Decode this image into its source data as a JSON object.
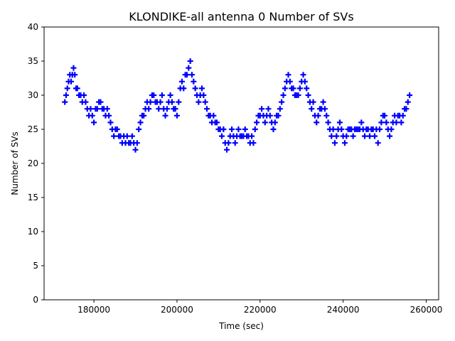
{
  "chart_data": {
    "type": "scatter",
    "title": "KLONDIKE-all antenna 0 Number of SVs",
    "xlabel": "Time (sec)",
    "ylabel": "Number of SVs",
    "xlim": [
      168000,
      263000
    ],
    "ylim": [
      0,
      40
    ],
    "xticks": [
      180000,
      200000,
      220000,
      240000,
      260000
    ],
    "yticks": [
      0,
      5,
      10,
      15,
      20,
      25,
      30,
      35,
      40
    ],
    "marker": "+",
    "color": "#0000ff",
    "series": [
      {
        "name": "antenna 0",
        "points": [
          [
            173000,
            29
          ],
          [
            173300,
            30
          ],
          [
            173600,
            31
          ],
          [
            173900,
            32
          ],
          [
            174200,
            33
          ],
          [
            174500,
            32
          ],
          [
            174800,
            33
          ],
          [
            175100,
            34
          ],
          [
            175400,
            33
          ],
          [
            175700,
            31
          ],
          [
            176000,
            31
          ],
          [
            176400,
            30
          ],
          [
            176800,
            30
          ],
          [
            177200,
            29
          ],
          [
            177600,
            30
          ],
          [
            178000,
            29
          ],
          [
            178400,
            28
          ],
          [
            178800,
            27
          ],
          [
            179200,
            28
          ],
          [
            179600,
            27
          ],
          [
            180000,
            26
          ],
          [
            180400,
            28
          ],
          [
            180800,
            28
          ],
          [
            181200,
            29
          ],
          [
            181600,
            29
          ],
          [
            182000,
            28
          ],
          [
            182400,
            28
          ],
          [
            182800,
            27
          ],
          [
            183200,
            28
          ],
          [
            183600,
            27
          ],
          [
            184000,
            26
          ],
          [
            184400,
            25
          ],
          [
            184800,
            24
          ],
          [
            185200,
            25
          ],
          [
            185600,
            25
          ],
          [
            186000,
            24
          ],
          [
            186400,
            24
          ],
          [
            186800,
            23
          ],
          [
            187200,
            24
          ],
          [
            187600,
            23
          ],
          [
            188000,
            24
          ],
          [
            188400,
            23
          ],
          [
            188800,
            23
          ],
          [
            189200,
            24
          ],
          [
            189600,
            23
          ],
          [
            190000,
            22
          ],
          [
            190400,
            23
          ],
          [
            190800,
            25
          ],
          [
            191200,
            26
          ],
          [
            191600,
            27
          ],
          [
            192000,
            27
          ],
          [
            192400,
            28
          ],
          [
            192800,
            29
          ],
          [
            193200,
            28
          ],
          [
            193600,
            29
          ],
          [
            194000,
            30
          ],
          [
            194400,
            30
          ],
          [
            194800,
            29
          ],
          [
            195200,
            29
          ],
          [
            195600,
            28
          ],
          [
            196000,
            29
          ],
          [
            196400,
            30
          ],
          [
            196800,
            28
          ],
          [
            197200,
            27
          ],
          [
            197600,
            28
          ],
          [
            198000,
            29
          ],
          [
            198400,
            30
          ],
          [
            198800,
            29
          ],
          [
            199200,
            28
          ],
          [
            199600,
            28
          ],
          [
            200000,
            27
          ],
          [
            200400,
            29
          ],
          [
            200800,
            31
          ],
          [
            201200,
            32
          ],
          [
            201600,
            31
          ],
          [
            202000,
            33
          ],
          [
            202400,
            33
          ],
          [
            202800,
            34
          ],
          [
            203200,
            35
          ],
          [
            203600,
            33
          ],
          [
            204000,
            32
          ],
          [
            204400,
            31
          ],
          [
            204800,
            30
          ],
          [
            205200,
            29
          ],
          [
            205600,
            30
          ],
          [
            206000,
            31
          ],
          [
            206400,
            30
          ],
          [
            206800,
            29
          ],
          [
            207200,
            28
          ],
          [
            207600,
            27
          ],
          [
            208000,
            27
          ],
          [
            208400,
            26
          ],
          [
            208800,
            27
          ],
          [
            209200,
            26
          ],
          [
            209600,
            26
          ],
          [
            210000,
            25
          ],
          [
            210400,
            25
          ],
          [
            210800,
            24
          ],
          [
            211200,
            25
          ],
          [
            211600,
            23
          ],
          [
            212000,
            22
          ],
          [
            212400,
            23
          ],
          [
            212800,
            24
          ],
          [
            213200,
            25
          ],
          [
            213600,
            24
          ],
          [
            214000,
            23
          ],
          [
            214400,
            24
          ],
          [
            214800,
            25
          ],
          [
            215200,
            24
          ],
          [
            215600,
            24
          ],
          [
            216000,
            24
          ],
          [
            216400,
            25
          ],
          [
            216800,
            24
          ],
          [
            217200,
            24
          ],
          [
            217600,
            23
          ],
          [
            218000,
            24
          ],
          [
            218400,
            23
          ],
          [
            218800,
            25
          ],
          [
            219200,
            26
          ],
          [
            219600,
            27
          ],
          [
            220000,
            27
          ],
          [
            220400,
            28
          ],
          [
            220800,
            27
          ],
          [
            221200,
            26
          ],
          [
            221600,
            27
          ],
          [
            222000,
            28
          ],
          [
            222400,
            27
          ],
          [
            222800,
            26
          ],
          [
            223200,
            25
          ],
          [
            223600,
            26
          ],
          [
            224000,
            27
          ],
          [
            224400,
            27
          ],
          [
            224800,
            28
          ],
          [
            225200,
            29
          ],
          [
            225600,
            30
          ],
          [
            226000,
            31
          ],
          [
            226400,
            32
          ],
          [
            226800,
            33
          ],
          [
            227200,
            32
          ],
          [
            227600,
            31
          ],
          [
            228000,
            31
          ],
          [
            228400,
            30
          ],
          [
            228800,
            30
          ],
          [
            229200,
            30
          ],
          [
            229600,
            31
          ],
          [
            230000,
            32
          ],
          [
            230400,
            33
          ],
          [
            230800,
            32
          ],
          [
            231200,
            31
          ],
          [
            231600,
            30
          ],
          [
            232000,
            29
          ],
          [
            232400,
            28
          ],
          [
            232800,
            29
          ],
          [
            233200,
            27
          ],
          [
            233600,
            26
          ],
          [
            234000,
            27
          ],
          [
            234400,
            28
          ],
          [
            234800,
            28
          ],
          [
            235200,
            29
          ],
          [
            235600,
            28
          ],
          [
            236000,
            27
          ],
          [
            236400,
            26
          ],
          [
            236800,
            25
          ],
          [
            237200,
            24
          ],
          [
            237600,
            25
          ],
          [
            238000,
            23
          ],
          [
            238400,
            24
          ],
          [
            238800,
            25
          ],
          [
            239200,
            26
          ],
          [
            239600,
            25
          ],
          [
            240000,
            24
          ],
          [
            240400,
            23
          ],
          [
            240800,
            24
          ],
          [
            241200,
            25
          ],
          [
            241600,
            25
          ],
          [
            242000,
            25
          ],
          [
            242400,
            24
          ],
          [
            242800,
            25
          ],
          [
            243200,
            25
          ],
          [
            243600,
            25
          ],
          [
            244000,
            25
          ],
          [
            244400,
            26
          ],
          [
            244800,
            25
          ],
          [
            245200,
            24
          ],
          [
            245600,
            25
          ],
          [
            246000,
            25
          ],
          [
            246400,
            24
          ],
          [
            246800,
            25
          ],
          [
            247200,
            25
          ],
          [
            247600,
            24
          ],
          [
            248000,
            25
          ],
          [
            248400,
            23
          ],
          [
            248800,
            25
          ],
          [
            249200,
            26
          ],
          [
            249600,
            27
          ],
          [
            250000,
            27
          ],
          [
            250400,
            26
          ],
          [
            250800,
            25
          ],
          [
            251200,
            24
          ],
          [
            251600,
            25
          ],
          [
            252000,
            26
          ],
          [
            252400,
            27
          ],
          [
            252800,
            26
          ],
          [
            253200,
            27
          ],
          [
            253600,
            27
          ],
          [
            254000,
            26
          ],
          [
            254400,
            27
          ],
          [
            254800,
            28
          ],
          [
            255200,
            28
          ],
          [
            255600,
            29
          ],
          [
            256000,
            30
          ]
        ]
      }
    ]
  }
}
